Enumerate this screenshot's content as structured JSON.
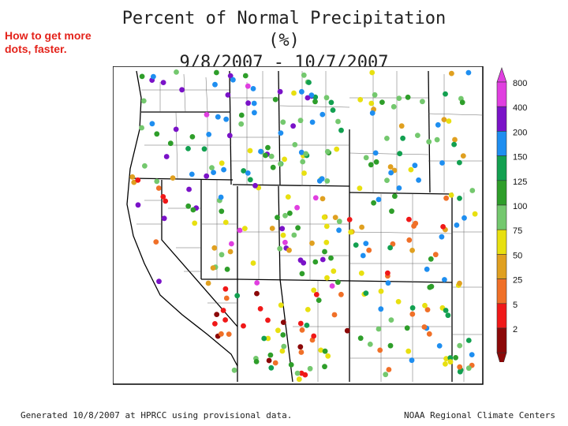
{
  "slide_note": "How to get more dots, faster.",
  "title": {
    "line1": "Percent of Normal Precipitation (%)",
    "line2": "9/8/2007 - 10/7/2007"
  },
  "legend": {
    "levels": [
      {
        "label": "800",
        "color": "#e03fe0"
      },
      {
        "label": "400",
        "color": "#7a12c8"
      },
      {
        "label": "200",
        "color": "#1e8ef0"
      },
      {
        "label": "150",
        "color": "#12a050"
      },
      {
        "label": "125",
        "color": "#2e9e2a"
      },
      {
        "label": "100",
        "color": "#74c86e"
      },
      {
        "label": "75",
        "color": "#e8e010"
      },
      {
        "label": "50",
        "color": "#e0a020"
      },
      {
        "label": "25",
        "color": "#f07028"
      },
      {
        "label": "5",
        "color": "#f01818"
      },
      {
        "label": "2",
        "color": "#8c0808"
      }
    ]
  },
  "footer": {
    "left": "Generated 10/8/2007 at HPRCC using provisional data.",
    "right": "NOAA Regional Climate Centers"
  }
}
